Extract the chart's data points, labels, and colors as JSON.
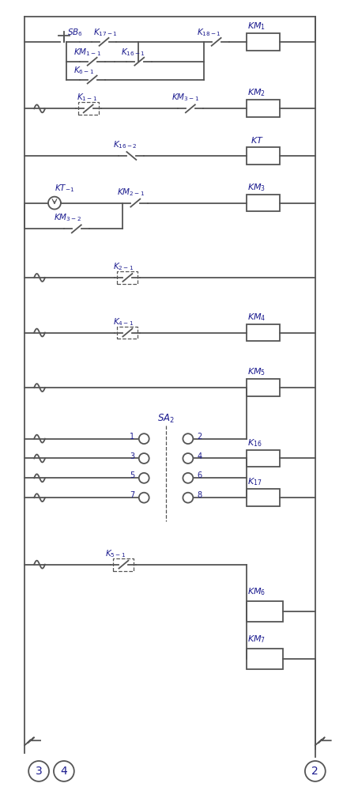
{
  "fig_width": 4.34,
  "fig_height": 10.0,
  "dpi": 100,
  "bg_color": "#ffffff",
  "line_color": "#555555",
  "text_color": "#1a1a8e",
  "lw": 1.3
}
